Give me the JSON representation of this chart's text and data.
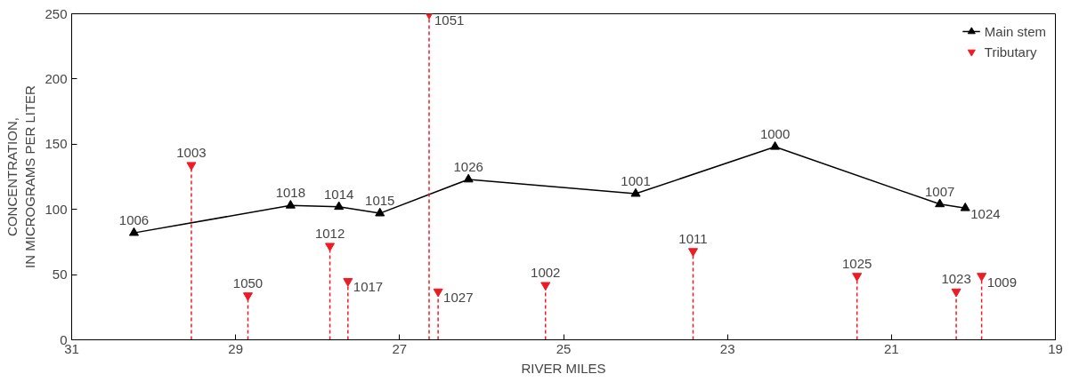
{
  "chart_data": {
    "type": "line",
    "xlabel": "RIVER MILES",
    "ylabel": "CONCENTRATION,\nIN MICROGRAMS PER LITER",
    "xlim": [
      31,
      19
    ],
    "xticks": [
      31,
      29,
      27,
      25,
      23,
      21,
      19
    ],
    "ylim": [
      0,
      250
    ],
    "yticks": [
      0,
      50,
      100,
      150,
      200,
      250
    ],
    "grid": false,
    "legend": "top right",
    "marker": "triangle",
    "series": [
      {
        "name": "Main stem",
        "color": "#000000",
        "x": [
          30.24,
          28.33,
          27.74,
          27.24,
          26.16,
          24.12,
          22.42,
          20.41,
          20.1
        ],
        "values": [
          82,
          103,
          102,
          97,
          123,
          112,
          148,
          104,
          101
        ]
      },
      {
        "name": "Tributary",
        "type": "lollipop",
        "color": "#ed1c24",
        "line_style": "dashed",
        "x": [
          29.54,
          28.85,
          27.85,
          27.63,
          26.64,
          26.53,
          25.22,
          23.42,
          21.42,
          20.21,
          19.9
        ],
        "values": [
          134,
          34,
          72,
          45,
          250,
          37,
          42,
          68,
          49,
          37,
          49
        ]
      }
    ],
    "annotations": [
      {
        "text": "1006",
        "x": 30.24,
        "y": 82
      },
      {
        "text": "1018",
        "x": 28.33,
        "y": 103
      },
      {
        "text": "1014",
        "x": 27.74,
        "y": 102
      },
      {
        "text": "1015",
        "x": 27.24,
        "y": 97
      },
      {
        "text": "1026",
        "x": 26.16,
        "y": 123
      },
      {
        "text": "1001",
        "x": 24.12,
        "y": 112
      },
      {
        "text": "1000",
        "x": 22.42,
        "y": 148
      },
      {
        "text": "1007",
        "x": 20.41,
        "y": 104
      },
      {
        "text": "1024",
        "x": 20.1,
        "y": 101
      },
      {
        "text": "1003",
        "x": 29.54,
        "y": 134
      },
      {
        "text": "1050",
        "x": 28.85,
        "y": 34
      },
      {
        "text": "1012",
        "x": 27.85,
        "y": 72
      },
      {
        "text": "1017",
        "x": 27.63,
        "y": 45
      },
      {
        "text": "1051",
        "x": 26.64,
        "y": 250
      },
      {
        "text": "1027",
        "x": 26.53,
        "y": 37
      },
      {
        "text": "1002",
        "x": 25.22,
        "y": 42
      },
      {
        "text": "1011",
        "x": 23.42,
        "y": 68
      },
      {
        "text": "1025",
        "x": 21.42,
        "y": 49
      },
      {
        "text": "1023",
        "x": 20.21,
        "y": 37
      },
      {
        "text": "1009",
        "x": 19.9,
        "y": 49
      }
    ]
  }
}
